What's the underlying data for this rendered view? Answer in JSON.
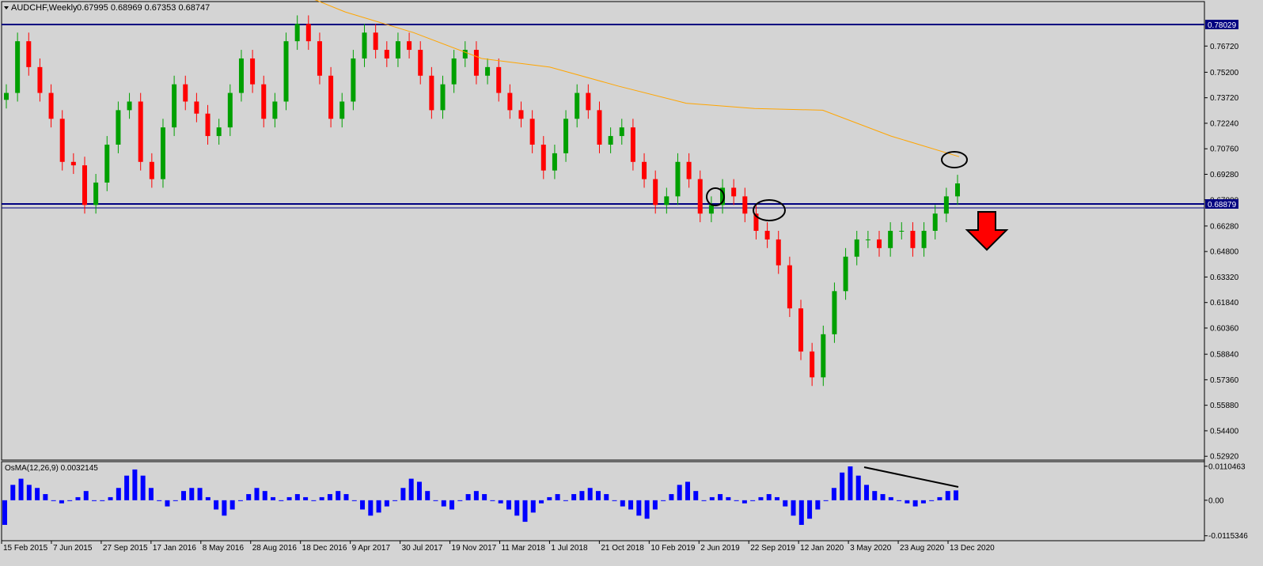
{
  "header": {
    "symbol_timeframe": "AUDCHF,Weekly",
    "ohlc": "0.67995 0.68969 0.67353 0.68747"
  },
  "indicator": {
    "label": "OsMA(12,26,9) 0.0032145"
  },
  "price_tags": {
    "resistance": "0.78029",
    "current": "0.68879"
  },
  "colors": {
    "background": "#d4d4d4",
    "bull": "#00a000",
    "bear": "#ff0000",
    "ma": "#ffa500",
    "level_line": "#000080",
    "histogram": "#0000ff",
    "arrow": "#ff0000"
  },
  "chart_data": [
    {
      "type": "candlestick",
      "ylim": [
        0.527,
        0.793
      ],
      "y_ticks": [
        "0.76720",
        "0.75200",
        "0.73720",
        "0.72240",
        "0.70760",
        "0.69280",
        "0.67800",
        "0.66280",
        "0.64800",
        "0.63320",
        "0.61840",
        "0.60360",
        "0.58840",
        "0.57360",
        "0.55880",
        "0.54400",
        "0.52920"
      ],
      "x_ticks": [
        "15 Feb 2015",
        "7 Jun 2015",
        "27 Sep 2015",
        "17 Jan 2016",
        "8 May 2016",
        "28 Aug 2016",
        "18 Dec 2016",
        "9 Apr 2017",
        "30 Jul 2017",
        "19 Nov 2017",
        "11 Mar 2018",
        "1 Jul 2018",
        "21 Oct 2018",
        "10 Feb 2019",
        "2 Jun 2019",
        "22 Sep 2019",
        "12 Jan 2020",
        "3 May 2020",
        "23 Aug 2020",
        "13 Dec 2020"
      ],
      "horizontal_levels": [
        0.78029,
        0.68879
      ],
      "series": [
        {
          "kind": "price",
          "close": [
            0.74,
            0.77,
            0.755,
            0.74,
            0.725,
            0.7,
            0.698,
            0.675,
            0.688,
            0.71,
            0.73,
            0.735,
            0.7,
            0.69,
            0.72,
            0.745,
            0.735,
            0.728,
            0.715,
            0.72,
            0.74,
            0.76,
            0.745,
            0.725,
            0.735,
            0.77,
            0.78,
            0.77,
            0.75,
            0.725,
            0.735,
            0.76,
            0.775,
            0.765,
            0.76,
            0.77,
            0.765,
            0.75,
            0.73,
            0.745,
            0.76,
            0.765,
            0.75,
            0.755,
            0.74,
            0.73,
            0.725,
            0.71,
            0.695,
            0.705,
            0.725,
            0.74,
            0.73,
            0.71,
            0.715,
            0.72,
            0.7,
            0.69,
            0.675,
            0.68,
            0.7,
            0.69,
            0.67,
            0.675,
            0.685,
            0.68,
            0.67,
            0.66,
            0.655,
            0.64,
            0.615,
            0.59,
            0.575,
            0.6,
            0.625,
            0.645,
            0.655,
            0.655,
            0.65,
            0.66,
            0.66,
            0.65,
            0.66,
            0.67,
            0.68,
            0.6875
          ]
        },
        {
          "kind": "moving_average",
          "values": [
            0.803,
            0.787,
            0.775,
            0.76,
            0.755,
            0.744,
            0.734,
            0.731,
            0.73,
            0.715,
            0.703
          ]
        },
        {
          "kind": "osma",
          "ylim": [
            -0.0116,
            0.011
          ],
          "y_ticks": [
            "0.0110463",
            "0.00",
            "-0.0115346"
          ],
          "values": [
            -0.008,
            0.005,
            0.007,
            0.005,
            0.004,
            0.002,
            0.0,
            -0.001,
            0.0,
            0.001,
            0.003,
            0.0,
            0.0,
            0.001,
            0.004,
            0.008,
            0.01,
            0.008,
            0.004,
            0.0,
            -0.002,
            0.0,
            0.003,
            0.004,
            0.004,
            0.001,
            -0.003,
            -0.005,
            -0.003,
            0.0,
            0.002,
            0.004,
            0.003,
            0.001,
            0.0,
            0.001,
            0.002,
            0.001,
            0.0,
            0.001,
            0.002,
            0.003,
            0.002,
            0.0,
            -0.003,
            -0.005,
            -0.004,
            -0.002,
            0.0,
            0.004,
            0.007,
            0.006,
            0.003,
            0.0,
            -0.002,
            -0.003,
            0.0,
            0.002,
            0.003,
            0.002,
            0.0,
            -0.001,
            -0.003,
            -0.005,
            -0.007,
            -0.004,
            -0.001,
            0.001,
            0.002,
            0.0,
            0.002,
            0.003,
            0.004,
            0.003,
            0.002,
            0.0,
            -0.002,
            -0.003,
            -0.005,
            -0.006,
            -0.003,
            0.0,
            0.002,
            0.005,
            0.006,
            0.003,
            0.0,
            0.001,
            0.002,
            0.001,
            0.0,
            -0.001,
            0.0,
            0.001,
            0.002,
            0.001,
            -0.002,
            -0.005,
            -0.008,
            -0.006,
            -0.003,
            0.0,
            0.004,
            0.009,
            0.011,
            0.008,
            0.005,
            0.003,
            0.002,
            0.001,
            0.0,
            -0.001,
            -0.002,
            -0.001,
            0.0,
            0.001,
            0.003,
            0.0032
          ]
        }
      ],
      "annotations": {
        "circles": [
          "swing high 2 Jun 2019",
          "swing high 22 Sep 2019",
          "moving average near 13 Dec 2020"
        ],
        "divergence_line": "OsMA peaks 3 May 2020 to 13 Dec 2020",
        "arrow": "down"
      }
    }
  ]
}
